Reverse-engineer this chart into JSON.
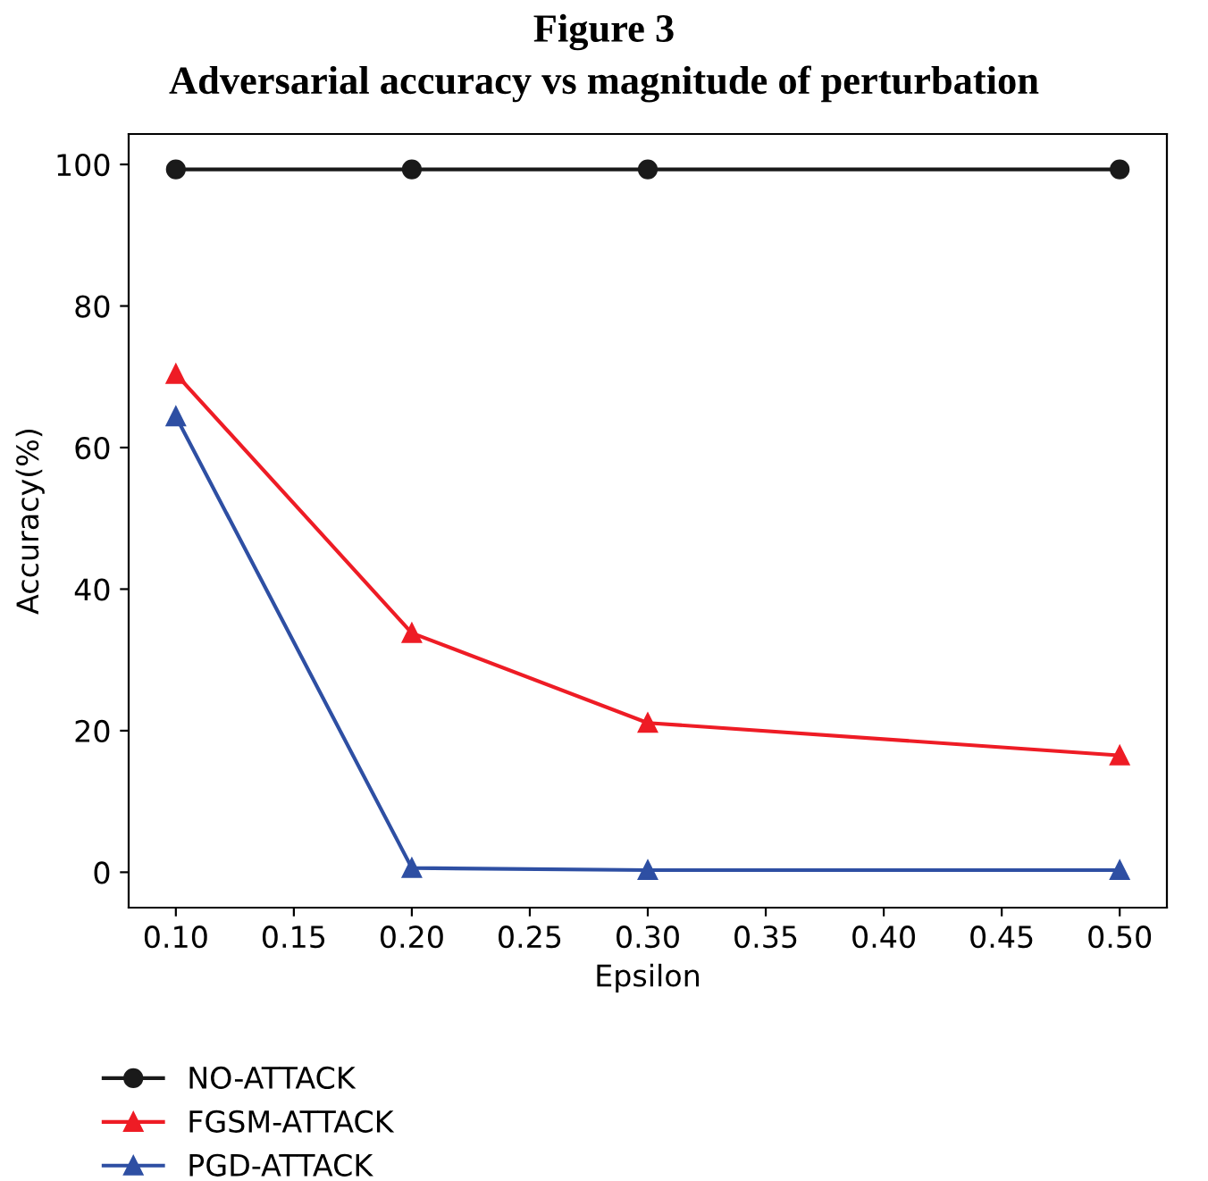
{
  "chart_data": {
    "type": "line",
    "title": "Figure 3",
    "subtitle": "Adversarial accuracy vs magnitude of perturbation",
    "xlabel": "Epsilon",
    "ylabel": "Accuracy(%)",
    "x": [
      0.1,
      0.2,
      0.3,
      0.5
    ],
    "series": [
      {
        "name": "NO-ATTACK",
        "color": "#1a1a1a",
        "marker": "circle",
        "values": [
          99.3,
          99.3,
          99.3,
          99.3
        ]
      },
      {
        "name": "FGSM-ATTACK",
        "color": "#ee1c25",
        "marker": "triangle",
        "values": [
          70.4,
          33.8,
          21.1,
          16.5
        ]
      },
      {
        "name": "PGD-ATTACK",
        "color": "#2e4fa3",
        "marker": "triangle",
        "values": [
          64.4,
          0.6,
          0.3,
          0.3
        ]
      }
    ],
    "xlim": [
      0.08,
      0.52
    ],
    "ylim": [
      -5,
      104.3
    ],
    "xticks": [
      {
        "value": 0.1,
        "label": "0.10"
      },
      {
        "value": 0.15,
        "label": "0.15"
      },
      {
        "value": 0.2,
        "label": "0.20"
      },
      {
        "value": 0.25,
        "label": "0.25"
      },
      {
        "value": 0.3,
        "label": "0.30"
      },
      {
        "value": 0.35,
        "label": "0.35"
      },
      {
        "value": 0.4,
        "label": "0.40"
      },
      {
        "value": 0.45,
        "label": "0.45"
      },
      {
        "value": 0.5,
        "label": "0.50"
      }
    ],
    "yticks": [
      0,
      20,
      40,
      60,
      80,
      100
    ],
    "grid": false,
    "legend": "bottom left",
    "line_style": "solid"
  }
}
